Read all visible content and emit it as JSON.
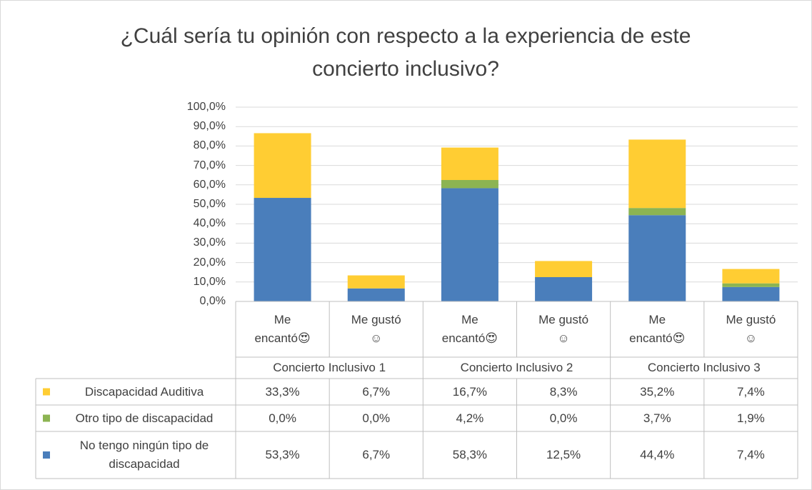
{
  "chart_data": {
    "type": "stacked-bar",
    "title": "¿Cuál sería tu opinión con respecto a la experiencia de este concierto inclusivo?",
    "categories": [
      "Me encantó😍",
      "Me gustó☺",
      "Me encantó😍",
      "Me gustó☺",
      "Me encantó😍",
      "Me gustó☺"
    ],
    "groups": [
      "Concierto Inclusivo 1",
      "Concierto Inclusivo 2",
      "Concierto Inclusivo 3"
    ],
    "series": [
      {
        "name": "Discapacidad Auditiva",
        "color": "#ffcd33",
        "values": [
          33.3,
          6.7,
          16.7,
          8.3,
          35.2,
          7.4
        ],
        "value_labels": [
          "33,3%",
          "6,7%",
          "16,7%",
          "8,3%",
          "35,2%",
          "7,4%"
        ]
      },
      {
        "name": "Otro tipo de discapacidad",
        "color": "#8cb452",
        "values": [
          0.0,
          0.0,
          4.2,
          0.0,
          3.7,
          1.9
        ],
        "value_labels": [
          "0,0%",
          "0,0%",
          "4,2%",
          "0,0%",
          "3,7%",
          "1,9%"
        ]
      },
      {
        "name": "No tengo ningún tipo de discapacidad",
        "color": "#4a7ebb",
        "values": [
          53.3,
          6.7,
          58.3,
          12.5,
          44.4,
          7.4
        ],
        "value_labels": [
          "53,3%",
          "6,7%",
          "58,3%",
          "12,5%",
          "44,4%",
          "7,4%"
        ]
      }
    ],
    "ylim": [
      0,
      100
    ],
    "yticks": [
      {
        "value": 0,
        "label": "0,0%"
      },
      {
        "value": 10,
        "label": "10,0%"
      },
      {
        "value": 20,
        "label": "20,0%"
      },
      {
        "value": 30,
        "label": "30,0%"
      },
      {
        "value": 40,
        "label": "40,0%"
      },
      {
        "value": 50,
        "label": "50,0%"
      },
      {
        "value": 60,
        "label": "60,0%"
      },
      {
        "value": 70,
        "label": "70,0%"
      },
      {
        "value": 80,
        "label": "80,0%"
      },
      {
        "value": 90,
        "label": "90,0%"
      },
      {
        "value": 100,
        "label": "100,0%"
      }
    ],
    "grid": true
  }
}
